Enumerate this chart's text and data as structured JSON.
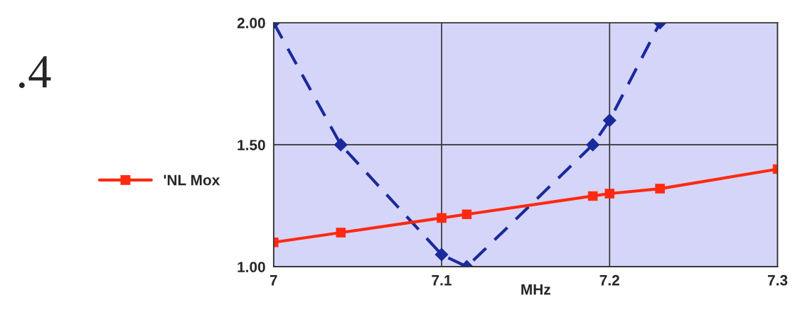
{
  "chart_data": {
    "type": "line",
    "xlabel": "MHz",
    "annotations": [
      ".4"
    ],
    "series": [
      {
        "color": "#1a2a9a",
        "marker": "diamond",
        "line_style": "dashed",
        "x": [
          7.0,
          7.04,
          7.1,
          7.115,
          7.19,
          7.2,
          7.23
        ],
        "values": [
          2.0,
          1.5,
          1.05,
          1.0,
          1.5,
          1.6,
          2.0
        ]
      },
      {
        "name": "'NL Mox",
        "color": "#ff2a10",
        "marker": "square",
        "line_style": "solid",
        "x": [
          7.0,
          7.04,
          7.1,
          7.115,
          7.19,
          7.2,
          7.23,
          7.3
        ],
        "values": [
          1.1,
          1.14,
          1.2,
          1.215,
          1.29,
          1.3,
          1.32,
          1.4
        ]
      }
    ],
    "xlim": [
      7.0,
      7.3
    ],
    "xticks": [
      7,
      7.1,
      7.2,
      7.3
    ],
    "ylim": [
      1.0,
      2.0
    ],
    "yticks": [
      {
        "value": 1.0,
        "label": "1.00"
      },
      {
        "value": 1.5,
        "label": "1.50"
      },
      {
        "value": 2.0,
        "label": "2.00"
      }
    ],
    "grid": true,
    "legend": "left"
  }
}
